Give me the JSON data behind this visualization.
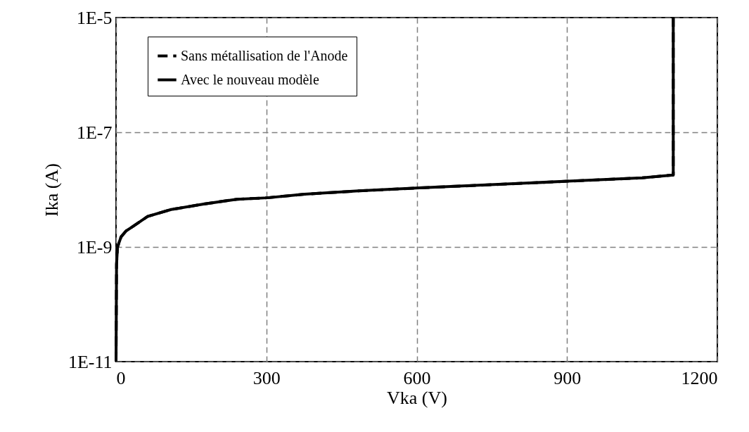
{
  "chart_data": {
    "type": "line",
    "xlabel": "Vka (V)",
    "ylabel": "Ika (A)",
    "log": "y",
    "grid": true,
    "legend": "top left",
    "xlim": [
      0,
      1200
    ],
    "xticks": [
      0,
      300,
      600,
      900,
      1200
    ],
    "ylim": [
      1e-11,
      1e-05
    ],
    "yticks": [
      {
        "value": 1e-11,
        "label": "1E-11"
      },
      {
        "value": 1e-09,
        "label": "1E-9"
      },
      {
        "value": 1e-07,
        "label": "1E-7"
      },
      {
        "value": 1e-05,
        "label": "1E-5"
      }
    ],
    "x": [
      0,
      1,
      3,
      10,
      20,
      31,
      63,
      110,
      175,
      241,
      302,
      376,
      484,
      606,
      901,
      1050,
      1112,
      1112
    ],
    "series": [
      {
        "name": "Sans métallisation de l'Anode",
        "color": "#000000",
        "line_style": "dashed",
        "values": [
          1e-11,
          5e-10,
          1e-09,
          1.5e-09,
          1.9e-09,
          2.2e-09,
          3.4e-09,
          4.5e-09,
          5.6e-09,
          6.8e-09,
          7.2e-09,
          8.3e-09,
          9.5e-09,
          1.07e-08,
          1.4e-08,
          1.6e-08,
          1.8e-08,
          1e-05
        ]
      },
      {
        "name": "Avec le nouveau modèle",
        "color": "#000000",
        "line_style": "solid",
        "values": [
          1e-11,
          5e-10,
          1e-09,
          1.5e-09,
          1.9e-09,
          2.2e-09,
          3.4e-09,
          4.5e-09,
          5.6e-09,
          6.8e-09,
          7.2e-09,
          8.3e-09,
          9.5e-09,
          1.07e-08,
          1.4e-08,
          1.6e-08,
          1.8e-08,
          1e-05
        ]
      }
    ]
  }
}
